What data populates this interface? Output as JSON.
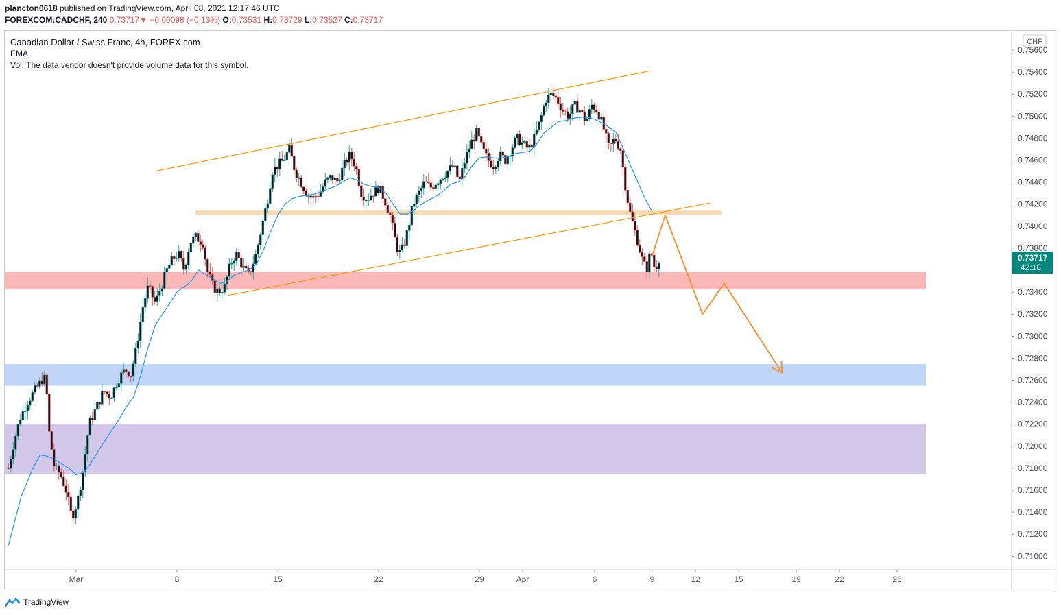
{
  "header": {
    "author": "plancton0618",
    "published": "published on TradingView.com, April 08, 2021 12:17:46 UTC",
    "symbol": "FOREXCOM:CADCHF, 240",
    "price": "0.73717",
    "change": "−0.00098 (−0.13%)",
    "o_label": "O:",
    "o": "0.73531",
    "h_label": "H:",
    "h": "0.73729",
    "l_label": "L:",
    "l": "0.73527",
    "c_label": "C:",
    "c": "0.73717"
  },
  "legend": {
    "title": "Canadian Dollar / Swiss Franc, 4h, FOREX.com",
    "ema": "EMA",
    "vol": "Vol: The data vendor doesn't provide volume data for this symbol."
  },
  "price_axis": {
    "currency": "CHF",
    "current_price": "0.73717",
    "countdown": "42:18"
  },
  "footer": {
    "brand": "TradingView"
  },
  "colors": {
    "up": "#26a69a",
    "down": "#ef5350",
    "candle_body": "#131722",
    "ema": "#2196f3",
    "channel": "#ff9800",
    "projection": "#f0953a",
    "zone_red": "#f8a0a0",
    "zone_orange": "#f9c98e",
    "zone_blue": "#a9c8f5",
    "zone_purple": "#c4b5e3",
    "price_tag": "#00897b"
  },
  "chart_data": {
    "type": "candlestick",
    "title": "Canadian Dollar / Swiss Franc, 4h, FOREX.com",
    "ylim": [
      0.709,
      0.757
    ],
    "y_ticks": [
      "0.75600",
      "0.75400",
      "0.75200",
      "0.75000",
      "0.74800",
      "0.74600",
      "0.74400",
      "0.74200",
      "0.74000",
      "0.73800",
      "0.73600",
      "0.73400",
      "0.73200",
      "0.73000",
      "0.72800",
      "0.72600",
      "0.72400",
      "0.72200",
      "0.72000",
      "0.71800",
      "0.71600",
      "0.71400",
      "0.71200",
      "0.71000"
    ],
    "x_ticks": [
      {
        "label": "Mar",
        "day": 0
      },
      {
        "label": "8",
        "day": 7
      },
      {
        "label": "15",
        "day": 14
      },
      {
        "label": "22",
        "day": 21
      },
      {
        "label": "29",
        "day": 28
      },
      {
        "label": "Apr",
        "day": 31
      },
      {
        "label": "6",
        "day": 36
      },
      {
        "label": "9",
        "day": 40
      },
      {
        "label": "12",
        "day": 43
      },
      {
        "label": "15",
        "day": 46
      },
      {
        "label": "19",
        "day": 50
      },
      {
        "label": "22",
        "day": 53
      },
      {
        "label": "26",
        "day": 57
      }
    ],
    "grid": false,
    "price_path": [
      [
        -4.7,
        0.718
      ],
      [
        -4.3,
        0.7205
      ],
      [
        -3.9,
        0.7225
      ],
      [
        -3.4,
        0.724
      ],
      [
        -2.9,
        0.725
      ],
      [
        -2.4,
        0.726
      ],
      [
        -2.1,
        0.7262
      ],
      [
        -1.9,
        0.7215
      ],
      [
        -1.5,
        0.718
      ],
      [
        -1.1,
        0.7175
      ],
      [
        -0.7,
        0.716
      ],
      [
        -0.3,
        0.7135
      ],
      [
        0.1,
        0.715
      ],
      [
        0.5,
        0.718
      ],
      [
        0.9,
        0.722
      ],
      [
        1.4,
        0.7235
      ],
      [
        1.9,
        0.725
      ],
      [
        2.4,
        0.7245
      ],
      [
        2.9,
        0.726
      ],
      [
        3.4,
        0.727
      ],
      [
        3.8,
        0.7265
      ],
      [
        4.2,
        0.729
      ],
      [
        4.6,
        0.7325
      ],
      [
        5.0,
        0.7345
      ],
      [
        5.5,
        0.733
      ],
      [
        5.9,
        0.7345
      ],
      [
        6.3,
        0.736
      ],
      [
        6.7,
        0.737
      ],
      [
        7.1,
        0.7375
      ],
      [
        7.5,
        0.736
      ],
      [
        7.9,
        0.7385
      ],
      [
        8.3,
        0.739
      ],
      [
        8.8,
        0.7385
      ],
      [
        9.1,
        0.736
      ],
      [
        9.5,
        0.7345
      ],
      [
        9.9,
        0.734
      ],
      [
        10.3,
        0.7345
      ],
      [
        10.7,
        0.7365
      ],
      [
        11.1,
        0.7375
      ],
      [
        11.6,
        0.7362
      ],
      [
        12.0,
        0.7355
      ],
      [
        12.5,
        0.7375
      ],
      [
        12.9,
        0.74
      ],
      [
        13.3,
        0.7425
      ],
      [
        13.6,
        0.745
      ],
      [
        14.0,
        0.7455
      ],
      [
        14.4,
        0.746
      ],
      [
        14.8,
        0.747
      ],
      [
        15.2,
        0.745
      ],
      [
        15.6,
        0.744
      ],
      [
        16.0,
        0.743
      ],
      [
        16.4,
        0.7425
      ],
      [
        16.9,
        0.743
      ],
      [
        17.3,
        0.744
      ],
      [
        17.7,
        0.7445
      ],
      [
        18.1,
        0.744
      ],
      [
        18.6,
        0.7455
      ],
      [
        19.0,
        0.7465
      ],
      [
        19.4,
        0.7455
      ],
      [
        19.8,
        0.743
      ],
      [
        20.2,
        0.7425
      ],
      [
        20.6,
        0.743
      ],
      [
        21.0,
        0.7435
      ],
      [
        21.4,
        0.7425
      ],
      [
        21.8,
        0.741
      ],
      [
        22.1,
        0.739
      ],
      [
        22.4,
        0.7375
      ],
      [
        22.7,
        0.738
      ],
      [
        23.0,
        0.7395
      ],
      [
        23.4,
        0.742
      ],
      [
        23.8,
        0.743
      ],
      [
        24.2,
        0.744
      ],
      [
        24.6,
        0.7435
      ],
      [
        25.0,
        0.744
      ],
      [
        25.4,
        0.7445
      ],
      [
        25.8,
        0.745
      ],
      [
        26.2,
        0.7455
      ],
      [
        26.6,
        0.744
      ],
      [
        27.0,
        0.746
      ],
      [
        27.4,
        0.7475
      ],
      [
        27.8,
        0.7485
      ],
      [
        28.2,
        0.747
      ],
      [
        28.6,
        0.746
      ],
      [
        29.0,
        0.7455
      ],
      [
        29.4,
        0.7465
      ],
      [
        29.8,
        0.746
      ],
      [
        30.2,
        0.747
      ],
      [
        30.6,
        0.748
      ],
      [
        31.0,
        0.7475
      ],
      [
        31.4,
        0.747
      ],
      [
        31.8,
        0.748
      ],
      [
        32.2,
        0.7495
      ],
      [
        32.6,
        0.7515
      ],
      [
        33.0,
        0.752
      ],
      [
        33.4,
        0.7515
      ],
      [
        33.8,
        0.7505
      ],
      [
        34.2,
        0.75
      ],
      [
        34.6,
        0.751
      ],
      [
        35.0,
        0.7505
      ],
      [
        35.4,
        0.7495
      ],
      [
        35.8,
        0.751
      ],
      [
        36.2,
        0.7505
      ],
      [
        36.6,
        0.749
      ],
      [
        37.0,
        0.747
      ],
      [
        37.4,
        0.748
      ],
      [
        37.8,
        0.747
      ],
      [
        38.1,
        0.744
      ],
      [
        38.4,
        0.7415
      ],
      [
        38.7,
        0.74
      ],
      [
        39.0,
        0.7385
      ],
      [
        39.3,
        0.737
      ],
      [
        39.6,
        0.736
      ],
      [
        39.9,
        0.7378
      ],
      [
        40.2,
        0.736
      ],
      [
        40.5,
        0.7372
      ]
    ],
    "ema_series": [
      [
        -4.7,
        0.711
      ],
      [
        -3.8,
        0.7155
      ],
      [
        -3.0,
        0.718
      ],
      [
        -2.5,
        0.7192
      ],
      [
        -2.0,
        0.7191
      ],
      [
        -1.5,
        0.7188
      ],
      [
        -1.0,
        0.7184
      ],
      [
        -0.5,
        0.718
      ],
      [
        0.0,
        0.7174
      ],
      [
        0.5,
        0.7176
      ],
      [
        1.0,
        0.7184
      ],
      [
        1.5,
        0.7195
      ],
      [
        2.0,
        0.7205
      ],
      [
        2.5,
        0.7215
      ],
      [
        3.0,
        0.7225
      ],
      [
        3.5,
        0.7236
      ],
      [
        4.0,
        0.7245
      ],
      [
        4.5,
        0.7265
      ],
      [
        5.0,
        0.729
      ],
      [
        5.5,
        0.731
      ],
      [
        6.0,
        0.732
      ],
      [
        6.5,
        0.733
      ],
      [
        7.0,
        0.734
      ],
      [
        7.5,
        0.7345
      ],
      [
        8.0,
        0.735
      ],
      [
        8.5,
        0.736
      ],
      [
        9.0,
        0.7356
      ],
      [
        9.5,
        0.7352
      ],
      [
        10.0,
        0.7348
      ],
      [
        10.5,
        0.735
      ],
      [
        11.0,
        0.7356
      ],
      [
        11.5,
        0.7358
      ],
      [
        12.0,
        0.736
      ],
      [
        12.5,
        0.7365
      ],
      [
        13.0,
        0.7378
      ],
      [
        13.5,
        0.7395
      ],
      [
        14.0,
        0.741
      ],
      [
        14.5,
        0.742
      ],
      [
        15.0,
        0.7425
      ],
      [
        15.5,
        0.7427
      ],
      [
        16.0,
        0.7428
      ],
      [
        16.5,
        0.7429
      ],
      [
        17.0,
        0.7431
      ],
      [
        17.5,
        0.7434
      ],
      [
        18.0,
        0.7436
      ],
      [
        18.5,
        0.744
      ],
      [
        19.0,
        0.7444
      ],
      [
        19.5,
        0.7442
      ],
      [
        20.0,
        0.7438
      ],
      [
        20.5,
        0.7436
      ],
      [
        21.0,
        0.7435
      ],
      [
        21.5,
        0.743
      ],
      [
        22.0,
        0.742
      ],
      [
        22.5,
        0.7411
      ],
      [
        23.0,
        0.7411
      ],
      [
        23.5,
        0.7415
      ],
      [
        24.0,
        0.742
      ],
      [
        24.5,
        0.7424
      ],
      [
        25.0,
        0.7427
      ],
      [
        25.5,
        0.7432
      ],
      [
        26.0,
        0.7438
      ],
      [
        26.5,
        0.744
      ],
      [
        27.0,
        0.7445
      ],
      [
        27.5,
        0.7455
      ],
      [
        28.0,
        0.7462
      ],
      [
        28.5,
        0.7463
      ],
      [
        29.0,
        0.7462
      ],
      [
        29.5,
        0.7462
      ],
      [
        30.0,
        0.7463
      ],
      [
        30.5,
        0.7466
      ],
      [
        31.0,
        0.7467
      ],
      [
        31.5,
        0.7468
      ],
      [
        32.0,
        0.7475
      ],
      [
        32.5,
        0.7485
      ],
      [
        33.0,
        0.749
      ],
      [
        33.5,
        0.7495
      ],
      [
        34.0,
        0.7496
      ],
      [
        34.5,
        0.7498
      ],
      [
        35.0,
        0.7499
      ],
      [
        35.5,
        0.7499
      ],
      [
        36.0,
        0.7497
      ],
      [
        36.5,
        0.7494
      ],
      [
        37.0,
        0.749
      ],
      [
        37.5,
        0.7485
      ],
      [
        38.0,
        0.747
      ],
      [
        38.5,
        0.7455
      ],
      [
        39.0,
        0.744
      ],
      [
        39.5,
        0.7425
      ],
      [
        40.0,
        0.7413
      ]
    ],
    "zones": [
      {
        "name": "resistance-orange",
        "day_from": 8.3,
        "day_to": 44.8,
        "y_from": 0.74105,
        "y_to": 0.7414,
        "color": "#f9c98e"
      },
      {
        "name": "supply-red",
        "day_from": -5,
        "day_to": 59,
        "y_from": 0.73425,
        "y_to": 0.73585,
        "color": "#f8a0a0"
      },
      {
        "name": "support-blue",
        "day_from": -5,
        "day_to": 59,
        "y_from": 0.7255,
        "y_to": 0.72745,
        "color": "#a9c8f5"
      },
      {
        "name": "support-purple",
        "day_from": -5,
        "day_to": 59,
        "y_from": 0.7175,
        "y_to": 0.72205,
        "color": "#c4b5e3"
      }
    ],
    "channel_lines": [
      {
        "name": "channel-upper",
        "from": [
          5.5,
          0.745
        ],
        "to": [
          39.8,
          0.7541
        ]
      },
      {
        "name": "channel-lower",
        "from": [
          10.5,
          0.7337
        ],
        "to": [
          44.0,
          0.7421
        ]
      }
    ],
    "projection": [
      [
        40.0,
        0.7373
      ],
      [
        40.9,
        0.741
      ],
      [
        43.5,
        0.732
      ],
      [
        45.0,
        0.7348
      ],
      [
        49.0,
        0.7267
      ]
    ],
    "last_price": 0.73717
  }
}
